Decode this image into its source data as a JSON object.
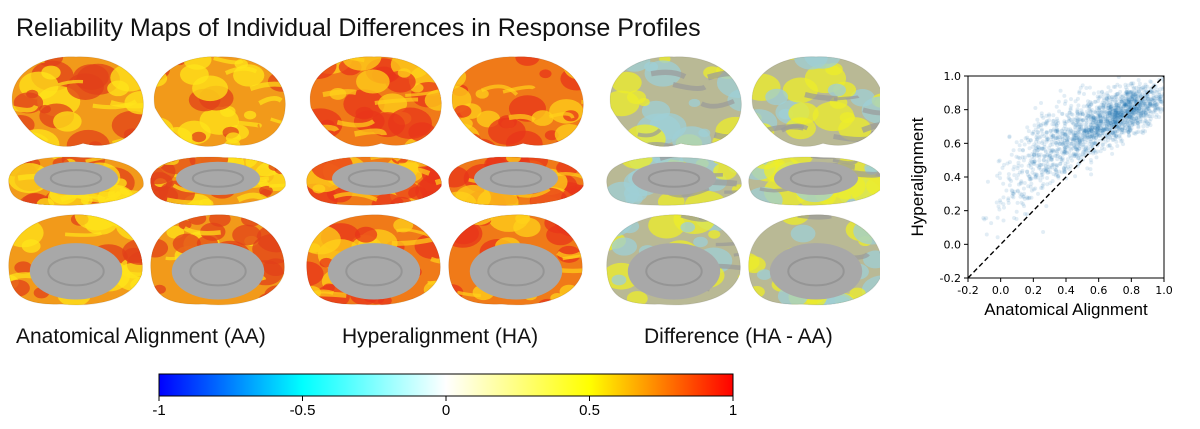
{
  "figure": {
    "title": "Reliability Maps of Individual Differences in Response Profiles",
    "panels": [
      {
        "label": "Anatomical Alignment (AA)",
        "map": "aa"
      },
      {
        "label": "Hyperalignment (HA)",
        "map": "ha"
      },
      {
        "label": "Difference (HA - AA)",
        "map": "diff"
      }
    ]
  },
  "colorbar": {
    "ticks": [
      "-1",
      "-0.5",
      "0",
      "0.5",
      "1"
    ],
    "colors": [
      "#0000ff",
      "#00ffff",
      "#ffffff",
      "#ffff00",
      "#ff0000"
    ]
  },
  "chart_data": {
    "type": "scatter",
    "xlabel": "Anatomical Alignment",
    "ylabel": "Hyperalignment",
    "xlim": [
      -0.2,
      1.0
    ],
    "ylim": [
      -0.2,
      1.0
    ],
    "xticks": [
      "-0.2",
      "0.0",
      "0.2",
      "0.4",
      "0.6",
      "0.8",
      "1.0"
    ],
    "yticks": [
      "-0.2",
      "0.0",
      "0.2",
      "0.4",
      "0.6",
      "0.8",
      "1.0"
    ],
    "reference_line": {
      "style": "dashed",
      "from": [
        -0.2,
        -0.2
      ],
      "to": [
        1.0,
        1.0
      ]
    },
    "point_color": "#1f77b4",
    "point_cloud": {
      "description_points": [
        {
          "x": 0.85,
          "y": 0.85
        },
        {
          "x": 0.7,
          "y": 0.8
        },
        {
          "x": 0.5,
          "y": 0.7
        },
        {
          "x": 0.3,
          "y": 0.6
        },
        {
          "x": 0.15,
          "y": 0.5
        },
        {
          "x": 0.05,
          "y": 0.3
        },
        {
          "x": 0.0,
          "y": 0.05
        }
      ]
    }
  }
}
